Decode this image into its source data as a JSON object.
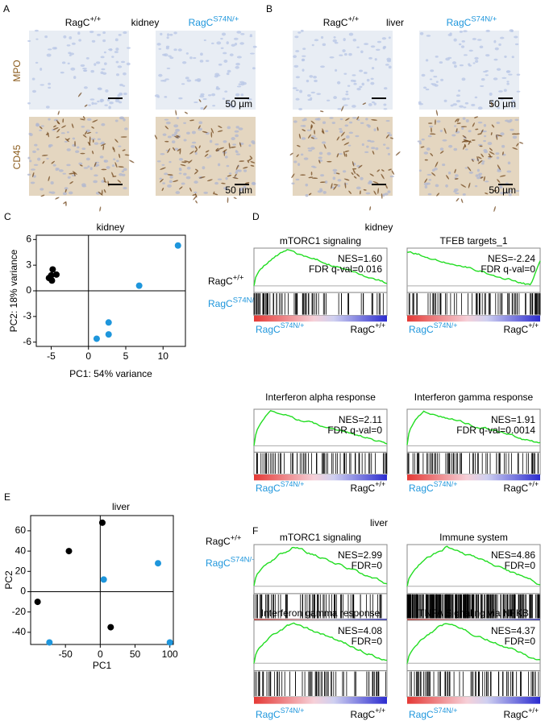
{
  "genotypes": [
    {
      "base": "RagC",
      "sup": "+/+",
      "color": "#000000"
    },
    {
      "base": "RagC",
      "sup": "S74N/+",
      "color": "#1e96dc"
    }
  ],
  "panels": {
    "A": {
      "label": "A",
      "tissue": "kidney",
      "stains": [
        "MPO",
        "CD45"
      ],
      "scale_bar": "50 µm"
    },
    "B": {
      "label": "B",
      "tissue": "liver",
      "stains": [
        "MPO",
        "CD45"
      ],
      "scale_bar": "50 µm"
    }
  },
  "chart_data": [
    {
      "panel": "C",
      "type": "scatter",
      "title": "kidney",
      "xlabel": "PC1: 54% variance",
      "ylabel": "PC2: 18% variance",
      "xlim": [
        -7,
        13
      ],
      "xticks": [
        -5,
        0,
        5,
        10
      ],
      "ylim": [
        -6.5,
        6.5
      ],
      "yticks": [
        -6,
        -3,
        0,
        3,
        6
      ],
      "series": [
        {
          "name": {
            "base": "RagC",
            "sup": "+/+"
          },
          "color": "#000000",
          "x": [
            -5.3,
            -4.9,
            -4.8,
            -4.3,
            -5.0
          ],
          "values": [
            1.5,
            1.2,
            2.5,
            1.9,
            1.8
          ]
        },
        {
          "name": {
            "base": "RagC",
            "sup": "S74N/+"
          },
          "color": "#1e96dc",
          "x": [
            12,
            6.8,
            2.7,
            2.7,
            1.1
          ],
          "values": [
            5.3,
            0.6,
            -3.7,
            -5.1,
            -5.6
          ]
        }
      ]
    },
    {
      "panel": "E",
      "type": "scatter",
      "title": "liver",
      "xlabel": "PC1",
      "ylabel": "PC2",
      "xlim": [
        -100,
        105
      ],
      "xticks": [
        -50,
        0,
        50,
        100
      ],
      "ylim": [
        -52,
        75
      ],
      "yticks": [
        -40,
        -20,
        0,
        20,
        40,
        60
      ],
      "series": [
        {
          "name": {
            "base": "RagC",
            "sup": "+/+"
          },
          "color": "#000000",
          "x": [
            -45,
            -90,
            3,
            15
          ],
          "values": [
            40,
            -10,
            68,
            -35
          ]
        },
        {
          "name": {
            "base": "RagC",
            "sup": "S74N/+"
          },
          "color": "#1e96dc",
          "x": [
            5,
            83,
            -73,
            100
          ],
          "values": [
            12,
            28,
            -50,
            -50
          ]
        }
      ]
    }
  ],
  "gsea": {
    "D": {
      "label": "D",
      "tissue": "kidney",
      "plots": [
        {
          "title": "mTORC1 signaling",
          "stats": [
            "NES=1.60",
            "FDR q-val=0.016"
          ]
        },
        {
          "title": "TFEB targets_1",
          "stats": [
            "NES=-2.24",
            "FDR q-val=0"
          ]
        },
        {
          "title": "Interferon alpha response",
          "stats": [
            "NES=2.11",
            "FDR q-val=0"
          ]
        },
        {
          "title": "Interferon gamma response",
          "stats": [
            "NES=1.91",
            "FDR q-val=0.0014"
          ]
        }
      ]
    },
    "F": {
      "label": "F",
      "tissue": "liver",
      "plots": [
        {
          "title": "mTORC1 signaling",
          "stats": [
            "NES=2.99",
            "FDR=0"
          ]
        },
        {
          "title": "Immune system",
          "stats": [
            "NES=4.86",
            "FDR=0"
          ]
        },
        {
          "title": "Interferon gamma response",
          "stats": [
            "NES=4.08",
            "FDR=0"
          ]
        },
        {
          "title": "TNFA Signaling via NFKB",
          "stats": [
            "NES=4.37",
            "FDR=0"
          ]
        }
      ]
    }
  }
}
